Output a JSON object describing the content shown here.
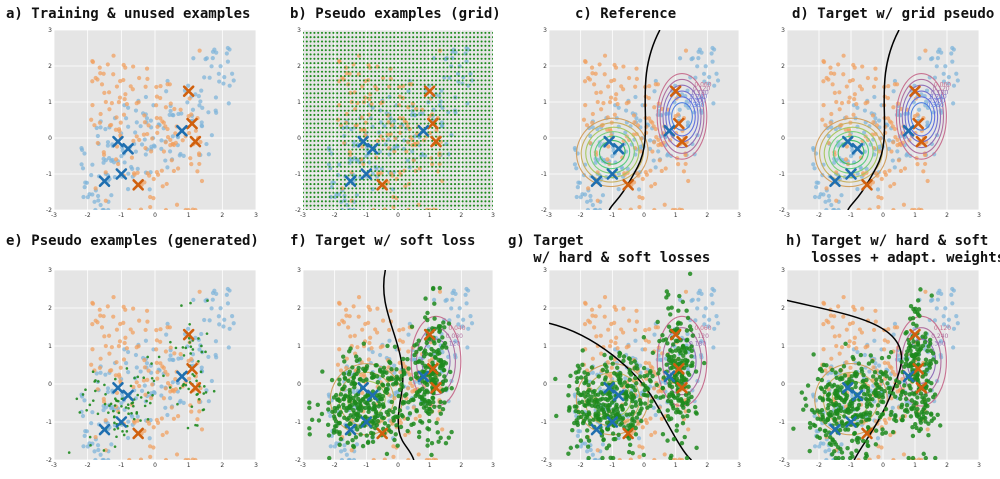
{
  "figure": {
    "titles": {
      "a": "a) Training & unused examples",
      "b": "b) Pseudo examples (grid)",
      "c": "c) Reference",
      "d": "d) Target w/ grid pseudo",
      "e": "e) Pseudo examples (generated)",
      "f": "f) Target w/ soft loss",
      "g1": "g) Target",
      "g2": "   w/ hard & soft losses",
      "h1": "h) Target w/ hard & soft",
      "h2": "   losses + adapt. weights"
    }
  },
  "colors": {
    "background": "#e5e5e5",
    "class_orange": "#f0a060",
    "class_blue": "#7fb4d9",
    "train_orange": "#d0600e",
    "train_blue": "#1f6fb0",
    "pseudo_green": "#1d8a1d",
    "boundary": "#000000"
  },
  "chart_data": [
    {
      "panel": "a",
      "type": "scatter",
      "xlim": [
        -3,
        3
      ],
      "ylim": [
        -2,
        3
      ],
      "xticks": [
        -3,
        -2,
        -1,
        0,
        1,
        2,
        3
      ],
      "yticks": [
        -2,
        -1,
        0,
        1,
        2,
        3
      ],
      "xtick_labels": [
        "-3",
        "-2",
        "-1",
        "0",
        "1",
        "2",
        "3"
      ],
      "ytick_labels": [
        "-2",
        "-1",
        "0",
        "1",
        "2",
        "3"
      ],
      "grid": true,
      "pseudo": "none",
      "contours": false,
      "boundary": false,
      "training_points": {
        "orange": [
          [
            1.0,
            1.3
          ],
          [
            1.1,
            0.4
          ],
          [
            1.2,
            -0.1
          ],
          [
            -0.5,
            -1.3
          ]
        ],
        "blue": [
          [
            -1.1,
            -0.1
          ],
          [
            -0.8,
            -0.3
          ],
          [
            0.8,
            0.2
          ],
          [
            -1.5,
            -1.2
          ],
          [
            -1.0,
            -1.0
          ]
        ]
      }
    },
    {
      "panel": "b",
      "type": "scatter",
      "xlim": [
        -3,
        3
      ],
      "ylim": [
        -2,
        3
      ],
      "xticks": [
        -3,
        -2,
        -1,
        0,
        1,
        2,
        3
      ],
      "yticks": [
        -2,
        -1,
        0,
        1,
        2,
        3
      ],
      "xtick_labels": [
        "-3",
        "-2",
        "-1",
        "0",
        "1",
        "2",
        "3"
      ],
      "ytick_labels": [
        "-2",
        "-1",
        "0",
        "1",
        "2",
        "3"
      ],
      "grid": true,
      "pseudo": "grid",
      "contours": false,
      "boundary": false,
      "training_points": {
        "orange": [
          [
            1.0,
            1.3
          ],
          [
            1.1,
            0.4
          ],
          [
            1.2,
            -0.1
          ],
          [
            -0.5,
            -1.3
          ]
        ],
        "blue": [
          [
            -1.1,
            -0.1
          ],
          [
            -0.8,
            -0.3
          ],
          [
            0.8,
            0.2
          ],
          [
            -1.5,
            -1.2
          ],
          [
            -1.0,
            -1.0
          ]
        ]
      }
    },
    {
      "panel": "c",
      "type": "contour",
      "xlim": [
        -3,
        3
      ],
      "ylim": [
        -2,
        3
      ],
      "xticks": [
        -3,
        -2,
        -1,
        0,
        1,
        2,
        3
      ],
      "yticks": [
        -2,
        -1,
        0,
        1,
        2,
        3
      ],
      "xtick_labels": [
        "-3",
        "-2",
        "-1",
        "0",
        "1",
        "2",
        "3"
      ],
      "ytick_labels": [
        "-2",
        "-1",
        "0",
        "1",
        "2",
        "3"
      ],
      "grid": true,
      "pseudo": "none",
      "contours": true,
      "boundary": true,
      "contour_labels": [
        "0.060",
        "0.120",
        "0.180",
        "0.240",
        "0.300",
        "0.360"
      ],
      "training_points": {
        "orange": [
          [
            1.0,
            1.3
          ],
          [
            1.1,
            0.4
          ],
          [
            1.2,
            -0.1
          ],
          [
            -0.5,
            -1.3
          ]
        ],
        "blue": [
          [
            -1.1,
            -0.1
          ],
          [
            -0.8,
            -0.3
          ],
          [
            0.8,
            0.2
          ],
          [
            -1.5,
            -1.2
          ],
          [
            -1.0,
            -1.0
          ]
        ]
      }
    },
    {
      "panel": "d",
      "type": "contour",
      "xlim": [
        -3,
        3
      ],
      "ylim": [
        -2,
        3
      ],
      "xticks": [
        -3,
        -2,
        -1,
        0,
        1,
        2,
        3
      ],
      "yticks": [
        -2,
        -1,
        0,
        1,
        2,
        3
      ],
      "xtick_labels": [
        "-3",
        "-2",
        "-1",
        "0",
        "1",
        "2",
        "3"
      ],
      "ytick_labels": [
        "-2",
        "-1",
        "0",
        "1",
        "2",
        "3"
      ],
      "grid": true,
      "pseudo": "none",
      "contours": true,
      "boundary": true,
      "contour_labels": [
        "0.060",
        "0.120",
        "0.180",
        "0.240",
        "0.300",
        "0.360"
      ],
      "training_points": {
        "orange": [
          [
            1.0,
            1.3
          ],
          [
            1.1,
            0.4
          ],
          [
            1.2,
            -0.1
          ],
          [
            -0.5,
            -1.3
          ]
        ],
        "blue": [
          [
            -1.1,
            -0.1
          ],
          [
            -0.8,
            -0.3
          ],
          [
            0.8,
            0.2
          ],
          [
            -1.5,
            -1.2
          ],
          [
            -1.0,
            -1.0
          ]
        ]
      }
    },
    {
      "panel": "e",
      "type": "scatter",
      "xlim": [
        -3,
        3
      ],
      "ylim": [
        -2,
        3
      ],
      "xticks": [
        -3,
        -2,
        -1,
        0,
        1,
        2,
        3
      ],
      "yticks": [
        -2,
        -1,
        0,
        1,
        2,
        3
      ],
      "xtick_labels": [
        "-3",
        "-2",
        "-1",
        "0",
        "1",
        "2",
        "3"
      ],
      "ytick_labels": [
        "-2",
        "-1",
        "0",
        "1",
        "2",
        "3"
      ],
      "grid": true,
      "pseudo": "generated-sparse",
      "contours": false,
      "boundary": false,
      "training_points": {
        "orange": [
          [
            1.0,
            1.3
          ],
          [
            1.1,
            0.4
          ],
          [
            1.2,
            -0.1
          ],
          [
            -0.5,
            -1.3
          ]
        ],
        "blue": [
          [
            -1.1,
            -0.1
          ],
          [
            -0.8,
            -0.3
          ],
          [
            0.8,
            0.2
          ],
          [
            -1.5,
            -1.2
          ],
          [
            -1.0,
            -1.0
          ]
        ]
      }
    },
    {
      "panel": "f",
      "type": "contour",
      "xlim": [
        -3,
        3
      ],
      "ylim": [
        -2,
        3
      ],
      "xticks": [
        -3,
        -2,
        -1,
        0,
        1,
        2,
        3
      ],
      "yticks": [
        -2,
        -1,
        0,
        1,
        2,
        3
      ],
      "xtick_labels": [
        "-3",
        "-2",
        "-1",
        "0",
        "1",
        "2",
        "3"
      ],
      "ytick_labels": [
        "-2",
        "-1",
        "0",
        "1",
        "2",
        "3"
      ],
      "grid": true,
      "pseudo": "generated-dense",
      "contours": true,
      "boundary": true,
      "contour_labels": [
        "0.040",
        "0.080",
        "0.120"
      ],
      "training_points": {
        "orange": [
          [
            1.0,
            1.3
          ],
          [
            1.1,
            0.4
          ],
          [
            1.2,
            -0.1
          ],
          [
            -0.5,
            -1.3
          ]
        ],
        "blue": [
          [
            -1.1,
            -0.1
          ],
          [
            -0.8,
            -0.3
          ],
          [
            0.8,
            0.2
          ],
          [
            -1.5,
            -1.2
          ],
          [
            -1.0,
            -1.0
          ]
        ]
      }
    },
    {
      "panel": "g",
      "type": "contour",
      "xlim": [
        -3,
        3
      ],
      "ylim": [
        -2,
        3
      ],
      "xticks": [
        -3,
        -2,
        -1,
        0,
        1,
        2,
        3
      ],
      "yticks": [
        -2,
        -1,
        0,
        1,
        2,
        3
      ],
      "xtick_labels": [
        "-3",
        "-2",
        "-1",
        "0",
        "1",
        "2",
        "3"
      ],
      "ytick_labels": [
        "-2",
        "-1",
        "0",
        "1",
        "2",
        "3"
      ],
      "grid": true,
      "pseudo": "generated-dense",
      "contours": true,
      "boundary": true,
      "contour_labels": [
        "0.060",
        "0.120",
        "0.180"
      ],
      "training_points": {
        "orange": [
          [
            1.0,
            1.3
          ],
          [
            1.1,
            0.4
          ],
          [
            1.2,
            -0.1
          ],
          [
            -0.5,
            -1.3
          ]
        ],
        "blue": [
          [
            -1.1,
            -0.1
          ],
          [
            -0.8,
            -0.3
          ],
          [
            0.8,
            0.2
          ],
          [
            -1.5,
            -1.2
          ],
          [
            -1.0,
            -1.0
          ]
        ]
      }
    },
    {
      "panel": "h",
      "type": "contour",
      "xlim": [
        -3,
        3
      ],
      "ylim": [
        -2,
        3
      ],
      "xticks": [
        -3,
        -2,
        -1,
        0,
        1,
        2,
        3
      ],
      "yticks": [
        -2,
        -1,
        0,
        1,
        2,
        3
      ],
      "xtick_labels": [
        "-3",
        "-2",
        "-1",
        "0",
        "1",
        "2",
        "3"
      ],
      "ytick_labels": [
        "-2",
        "-1",
        "0",
        "1",
        "2",
        "3"
      ],
      "grid": true,
      "pseudo": "generated-dense",
      "contours": true,
      "boundary": true,
      "contour_labels": [
        "0.120",
        "0.240",
        "0.360"
      ],
      "training_points": {
        "orange": [
          [
            1.0,
            1.3
          ],
          [
            1.1,
            0.4
          ],
          [
            1.2,
            -0.1
          ],
          [
            -0.5,
            -1.3
          ]
        ],
        "blue": [
          [
            -1.1,
            -0.1
          ],
          [
            -0.8,
            -0.3
          ],
          [
            0.8,
            0.2
          ],
          [
            -1.5,
            -1.2
          ],
          [
            -1.0,
            -1.0
          ]
        ]
      }
    }
  ]
}
